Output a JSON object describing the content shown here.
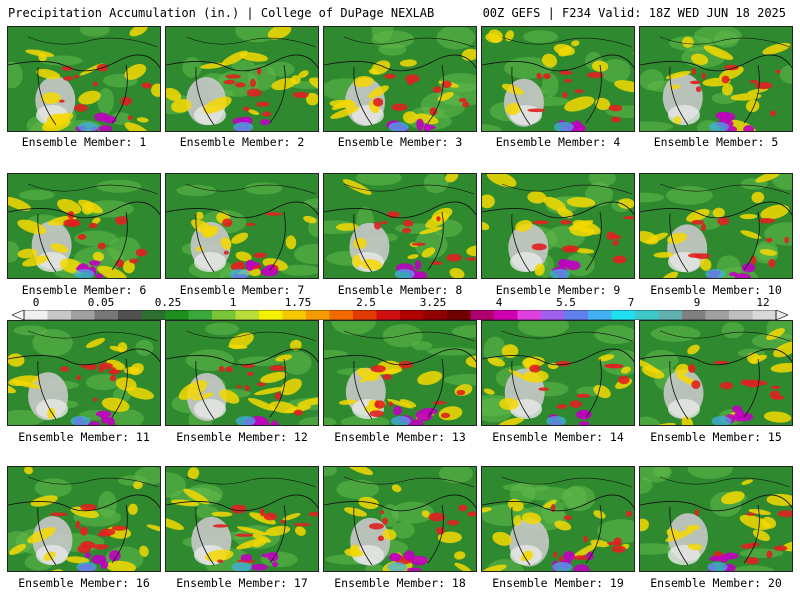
{
  "header": {
    "left": "Precipitation Accumulation (in.) | College of DuPage NEXLAB",
    "right": "00Z GEFS | F234 Valid: 18Z WED JUN 18 2025"
  },
  "colors": {
    "land_base": "#2f8a2f",
    "dry_region": "#c8c8c8",
    "moderate": "#f5d800",
    "heavy": "#e02020",
    "extreme": "#c000c0"
  },
  "members": [
    {
      "label": "Ensemble Member: 1"
    },
    {
      "label": "Ensemble Member: 2"
    },
    {
      "label": "Ensemble Member: 3"
    },
    {
      "label": "Ensemble Member: 4"
    },
    {
      "label": "Ensemble Member: 5"
    },
    {
      "label": "Ensemble Member: 6"
    },
    {
      "label": "Ensemble Member: 7"
    },
    {
      "label": "Ensemble Member: 8"
    },
    {
      "label": "Ensemble Member: 9"
    },
    {
      "label": "Ensemble Member: 10"
    },
    {
      "label": "Ensemble Member: 11"
    },
    {
      "label": "Ensemble Member: 12"
    },
    {
      "label": "Ensemble Member: 13"
    },
    {
      "label": "Ensemble Member: 14"
    },
    {
      "label": "Ensemble Member: 15"
    },
    {
      "label": "Ensemble Member: 16"
    },
    {
      "label": "Ensemble Member: 17"
    },
    {
      "label": "Ensemble Member: 18"
    },
    {
      "label": "Ensemble Member: 19"
    },
    {
      "label": "Ensemble Member: 20"
    }
  ],
  "colorbar": {
    "labels": [
      "0",
      "0.05",
      "0.25",
      "1",
      "1.75",
      "2.5",
      "3.25",
      "4",
      "5.5",
      "7",
      "9",
      "12"
    ],
    "colors": [
      "#f0f0f0",
      "#c8c8c8",
      "#a0a0a0",
      "#787878",
      "#505050",
      "#2f6f2f",
      "#1e8f1e",
      "#3aa83a",
      "#7ac43a",
      "#b8dc3a",
      "#f5f000",
      "#f5c800",
      "#f59a00",
      "#f06a00",
      "#e03a00",
      "#d01010",
      "#b00000",
      "#900000",
      "#700000",
      "#b00070",
      "#d000b0",
      "#e040e0",
      "#a060f0",
      "#6080f0",
      "#40b0f0",
      "#20e0f0",
      "#40c8c8",
      "#60b0b0",
      "#808080",
      "#a0a0a0",
      "#c0c0c0",
      "#d8d8d8"
    ]
  }
}
